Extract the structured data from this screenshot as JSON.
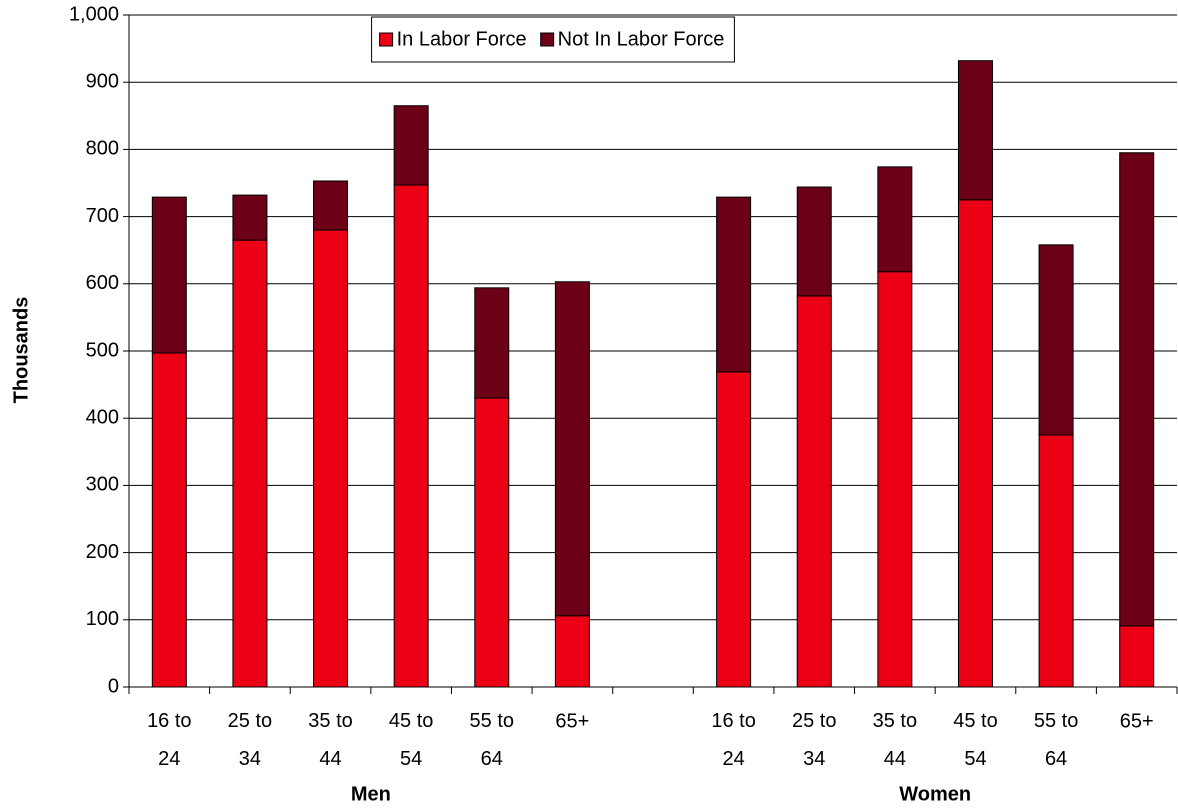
{
  "chart_data": {
    "type": "stacked_bar",
    "ylabel": "Thousands",
    "categories": [
      "16 to 24",
      "25 to 34",
      "35 to 44",
      "45 to 54",
      "55 to 64",
      "65+",
      null,
      "16 to 24",
      "25 to 34",
      "35 to 44",
      "45 to 54",
      "55 to 64",
      "65+"
    ],
    "groups": [
      "Men",
      "Women"
    ],
    "series": [
      {
        "name": "In Labor Force",
        "color": "#ec0016",
        "values": [
          497,
          665,
          680,
          747,
          430,
          106,
          null,
          469,
          582,
          618,
          725,
          375,
          91
        ]
      },
      {
        "name": "Not In Labor Force",
        "color": "#6b0016",
        "values": [
          232,
          67,
          73,
          118,
          164,
          497,
          null,
          260,
          162,
          156,
          207,
          283,
          704
        ]
      }
    ],
    "ylim": [
      0,
      1000
    ],
    "yticks": [
      0,
      100,
      200,
      300,
      400,
      500,
      600,
      700,
      800,
      900,
      {
        "value": 1000,
        "label": "1,000"
      }
    ],
    "grid": true,
    "legend": "top"
  }
}
